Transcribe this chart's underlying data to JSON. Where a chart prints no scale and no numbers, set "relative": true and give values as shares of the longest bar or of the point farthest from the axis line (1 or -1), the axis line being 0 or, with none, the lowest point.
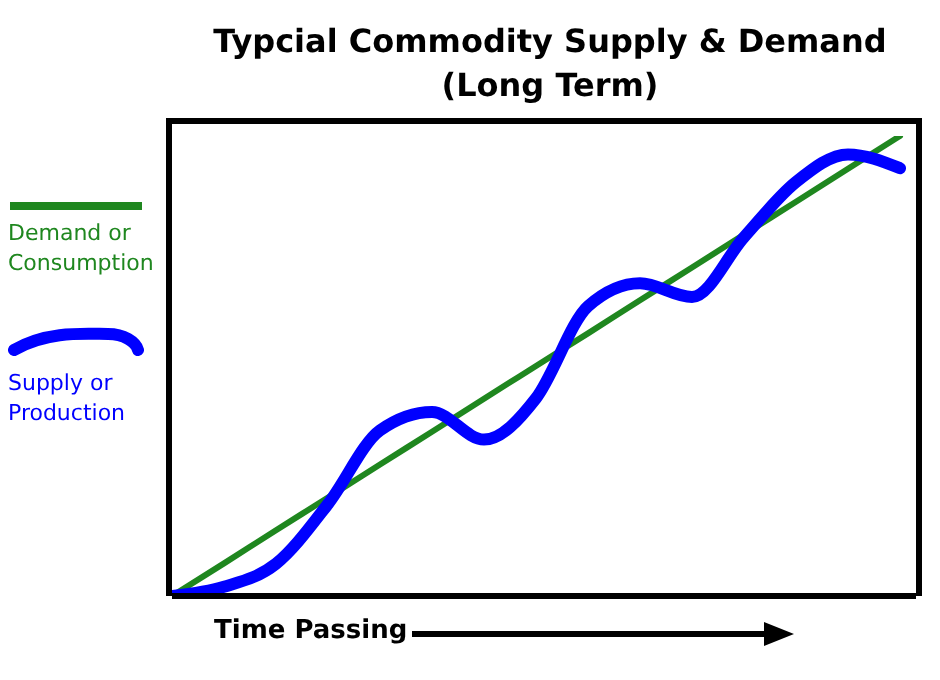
{
  "chart_data": {
    "type": "line",
    "title": "Typcial Commodity Supply & Demand (Long Term)",
    "xlabel": "Time Passing",
    "relative": true,
    "categories": [
      null,
      null,
      null,
      null,
      null,
      null,
      null,
      null,
      null,
      null,
      null,
      null,
      null,
      null,
      null
    ],
    "series": [
      {
        "name": "Demand or Consumption",
        "color": "#1f871f",
        "values": [
          0,
          0.071,
          0.143,
          0.214,
          0.286,
          0.357,
          0.429,
          0.5,
          0.571,
          0.643,
          0.714,
          0.786,
          0.857,
          0.929,
          1
        ]
      },
      {
        "name": "Supply or Production",
        "color": "#0000ff",
        "values": [
          0,
          0.02,
          0.07,
          0.2,
          0.36,
          0.4,
          0.34,
          0.43,
          0.63,
          0.68,
          0.65,
          0.78,
          0.9,
          0.96,
          0.93
        ]
      }
    ],
    "legend": "left",
    "grid": false,
    "marker": "none",
    "line_style": "solid"
  }
}
